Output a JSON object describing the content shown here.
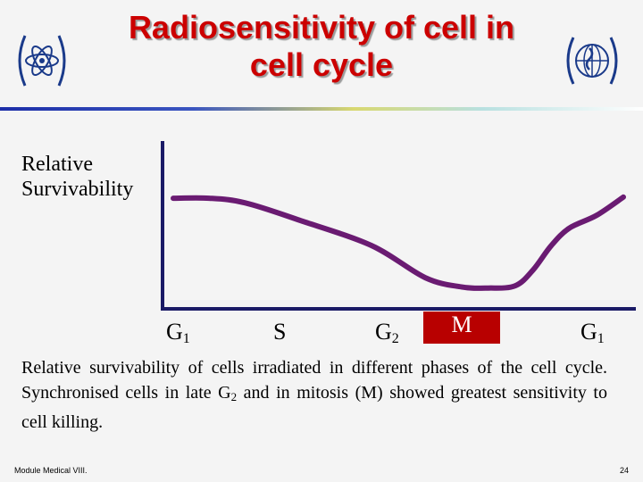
{
  "slide": {
    "title_line1": "Radiosensitivity of cell in",
    "title_line2": "cell cycle",
    "footer_left": "Module Medical VIII.",
    "footer_right": "24"
  },
  "colors": {
    "title": "#cc0000",
    "curve": "#6a1b72",
    "axis": "#1a1a66",
    "mitosis_box": "#b80000",
    "logo": "#1a3a8a"
  },
  "icons": {
    "left_logo": "atom-emblem-icon",
    "right_logo": "globe-laurel-emblem-icon"
  },
  "chart_data": {
    "type": "line",
    "ylabel_line1": "Relative",
    "ylabel_line2": "Survivability",
    "xlabel": "",
    "categories": [
      {
        "base": "G",
        "sub": "1"
      },
      {
        "base": "S",
        "sub": ""
      },
      {
        "base": "G",
        "sub": "2"
      },
      {
        "base": "M",
        "sub": ""
      },
      {
        "base": "G",
        "sub": "1"
      }
    ],
    "highlighted_category": 3,
    "xlim": [
      0,
      1
    ],
    "ylim": [
      0,
      1
    ],
    "grid": false,
    "series": [
      {
        "x": [
          0.0,
          0.08,
          0.16,
          0.28,
          0.44,
          0.56,
          0.64,
          0.7,
          0.76,
          0.8,
          0.84,
          0.88,
          0.94,
          1.0
        ],
        "values": [
          0.79,
          0.79,
          0.75,
          0.6,
          0.38,
          0.1,
          0.02,
          0.01,
          0.03,
          0.17,
          0.38,
          0.53,
          0.64,
          0.8
        ]
      }
    ],
    "caption_part1": "Relative survivability of cells irradiated in different phases of the cell cycle. Synchronised cells in late G",
    "caption_sub": "2",
    "caption_part2": " and in mitosis (M) showed greatest sensitivity to cell killing."
  }
}
